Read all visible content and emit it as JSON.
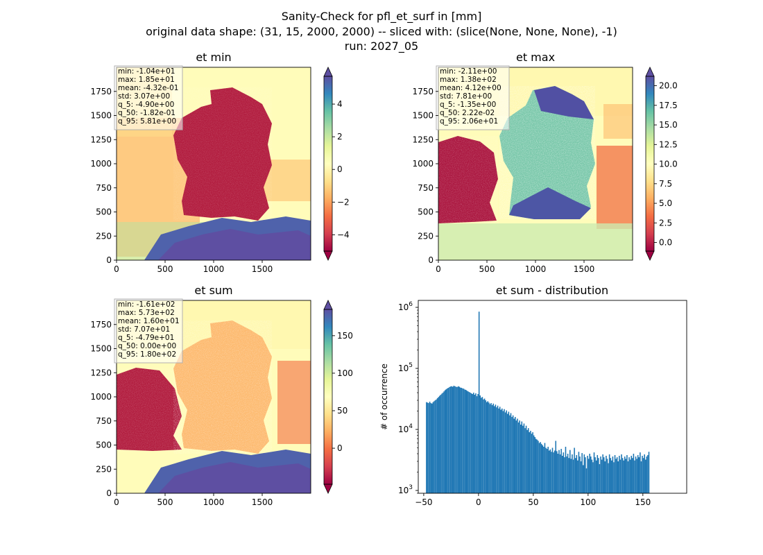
{
  "figure": {
    "title_lines": [
      "Sanity-Check for pfl_et_surf in [mm]",
      "original data shape: (31, 15, 2000, 2000) -- sliced with: (slice(None, None, None), -1)",
      "run: 2027_05"
    ]
  },
  "colors": {
    "histogram": "#1f77b4",
    "colormap": [
      "#9e0142",
      "#d53e4f",
      "#f46d43",
      "#fdae61",
      "#fee08b",
      "#ffffbf",
      "#e6f598",
      "#abdda4",
      "#66c2a5",
      "#3288bd",
      "#5e4fa2"
    ]
  },
  "chart_data": [
    {
      "type": "heatmap",
      "title": "et min",
      "colormap": "Spectral",
      "x_ticks": [
        0,
        500,
        1000,
        1500
      ],
      "y_ticks": [
        0,
        250,
        500,
        750,
        1000,
        1250,
        1500,
        1750
      ],
      "xlim": [
        0,
        2000
      ],
      "ylim": [
        0,
        2000
      ],
      "color_range": [
        -5,
        5.7
      ],
      "colorbar_ticks": [
        -4,
        -2,
        0,
        2,
        4
      ],
      "colorbar_tick_labels": [
        "−4",
        "−2",
        "0",
        "2",
        "4"
      ],
      "colorbar_extend": "both",
      "stats": [
        "min: -1.04e+01",
        "max: 1.85e+01",
        "mean: -4.32e-01",
        "std: 3.07e+00",
        "q_5: -4.90e+00",
        "q_50: -1.82e-01",
        "q_95: 5.81e+00"
      ]
    },
    {
      "type": "heatmap",
      "title": "et max",
      "colormap": "Spectral",
      "x_ticks": [
        0,
        500,
        1000,
        1500
      ],
      "y_ticks": [
        0,
        250,
        500,
        750,
        1000,
        1250,
        1500,
        1750
      ],
      "xlim": [
        0,
        2000
      ],
      "ylim": [
        0,
        2000
      ],
      "color_range": [
        -1.1,
        21.2
      ],
      "colorbar_ticks": [
        0,
        2.5,
        5,
        7.5,
        10,
        12.5,
        15,
        17.5,
        20
      ],
      "colorbar_tick_labels": [
        "0.0",
        "2.5",
        "5.0",
        "7.5",
        "10.0",
        "12.5",
        "15.0",
        "17.5",
        "20.0"
      ],
      "colorbar_extend": "both",
      "stats": [
        "min: -2.11e+00",
        "max: 1.38e+02",
        "mean: 4.12e+00",
        "std: 7.81e+00",
        "q_5: -1.35e+00",
        "q_50: 2.22e-02",
        "q_95: 2.06e+01"
      ]
    },
    {
      "type": "heatmap",
      "title": "et sum",
      "colormap": "Spectral",
      "x_ticks": [
        0,
        500,
        1000,
        1500
      ],
      "y_ticks": [
        0,
        250,
        500,
        750,
        1000,
        1250,
        1500,
        1750
      ],
      "xlim": [
        0,
        2000
      ],
      "ylim": [
        0,
        2000
      ],
      "color_range": [
        -48,
        185
      ],
      "colorbar_ticks": [
        0,
        50,
        100,
        150
      ],
      "colorbar_tick_labels": [
        "0",
        "50",
        "100",
        "150"
      ],
      "colorbar_extend": "both",
      "stats": [
        "min: -1.61e+02",
        "max: 5.73e+02",
        "mean: 1.60e+01",
        "std: 7.07e+01",
        "q_5: -4.79e+01",
        "q_50: 0.00e+00",
        "q_95: 1.80e+02"
      ]
    },
    {
      "type": "bar",
      "title": "et sum - distribution",
      "ylabel": "# of occurrence",
      "yscale": "log",
      "ylim": [
        900,
        1300000
      ],
      "xlim": [
        -55,
        190
      ],
      "x_ticks": [
        -50,
        0,
        50,
        100,
        150
      ],
      "x_tick_labels": [
        "−50",
        "0",
        "50",
        "100",
        "150"
      ],
      "y_ticks": [
        1000,
        10000,
        100000,
        1000000
      ],
      "y_tick_labels": [
        [
          "10",
          "3"
        ],
        [
          "10",
          "4"
        ],
        [
          "10",
          "5"
        ],
        [
          "10",
          "6"
        ]
      ],
      "bin_start": -48,
      "bin_width": 1,
      "values": [
        28000,
        27500,
        27000,
        28500,
        27000,
        26500,
        28000,
        29000,
        30000,
        31000,
        32500,
        34000,
        35500,
        37000,
        38500,
        40000,
        42000,
        44000,
        45500,
        47000,
        48000,
        49500,
        50500,
        51000,
        50000,
        52000,
        51000,
        50000,
        49500,
        51000,
        50000,
        48500,
        48000,
        47000,
        46500,
        45000,
        44500,
        43000,
        42000,
        41000,
        40000,
        39000,
        38000,
        40000,
        37000,
        39000,
        35000,
        38000,
        850000,
        36000,
        33000,
        34000,
        31000,
        32000,
        30000,
        28000,
        29000,
        27500,
        26000,
        27000,
        25000,
        26500,
        24000,
        25500,
        23000,
        24500,
        22000,
        23500,
        21000,
        22000,
        20000,
        21500,
        19000,
        20500,
        18000,
        19500,
        17000,
        18500,
        16000,
        17000,
        15000,
        16000,
        14000,
        15000,
        13000,
        14000,
        12000,
        13500,
        11500,
        12500,
        10500,
        11500,
        9800,
        10500,
        9000,
        9500,
        8500,
        9000,
        8000,
        7500,
        7000,
        6800,
        6500,
        6000,
        6200,
        5800,
        5500,
        5200,
        6000,
        5000,
        4800,
        5200,
        4500,
        4700,
        4300,
        5000,
        4200,
        4500,
        6500,
        4400,
        4000,
        4600,
        3900,
        4800,
        3700,
        4200,
        3500,
        5200,
        3600,
        4000,
        3400,
        4600,
        3300,
        3900,
        3200,
        5000,
        3400,
        3800,
        3100,
        4300,
        3600,
        3000,
        4100,
        2600,
        3900,
        3500,
        2300,
        3700,
        3300,
        4000,
        3600,
        3200,
        2900,
        4200,
        3500,
        3100,
        3800,
        3400,
        2700,
        3600,
        3200,
        3900,
        3500,
        3000,
        3700,
        3300,
        2800,
        3900,
        3400,
        3100,
        3600,
        2900,
        3800,
        3300,
        3500,
        3000,
        3700,
        3200,
        3900,
        3400,
        3100,
        3600,
        3300,
        3800,
        3000,
        3500,
        3200,
        3700,
        3400,
        4000,
        3100,
        3600,
        3300,
        3800,
        3500,
        4200,
        3000,
        3700,
        3400,
        3900,
        3200,
        3600,
        3800,
        4300
      ]
    }
  ]
}
